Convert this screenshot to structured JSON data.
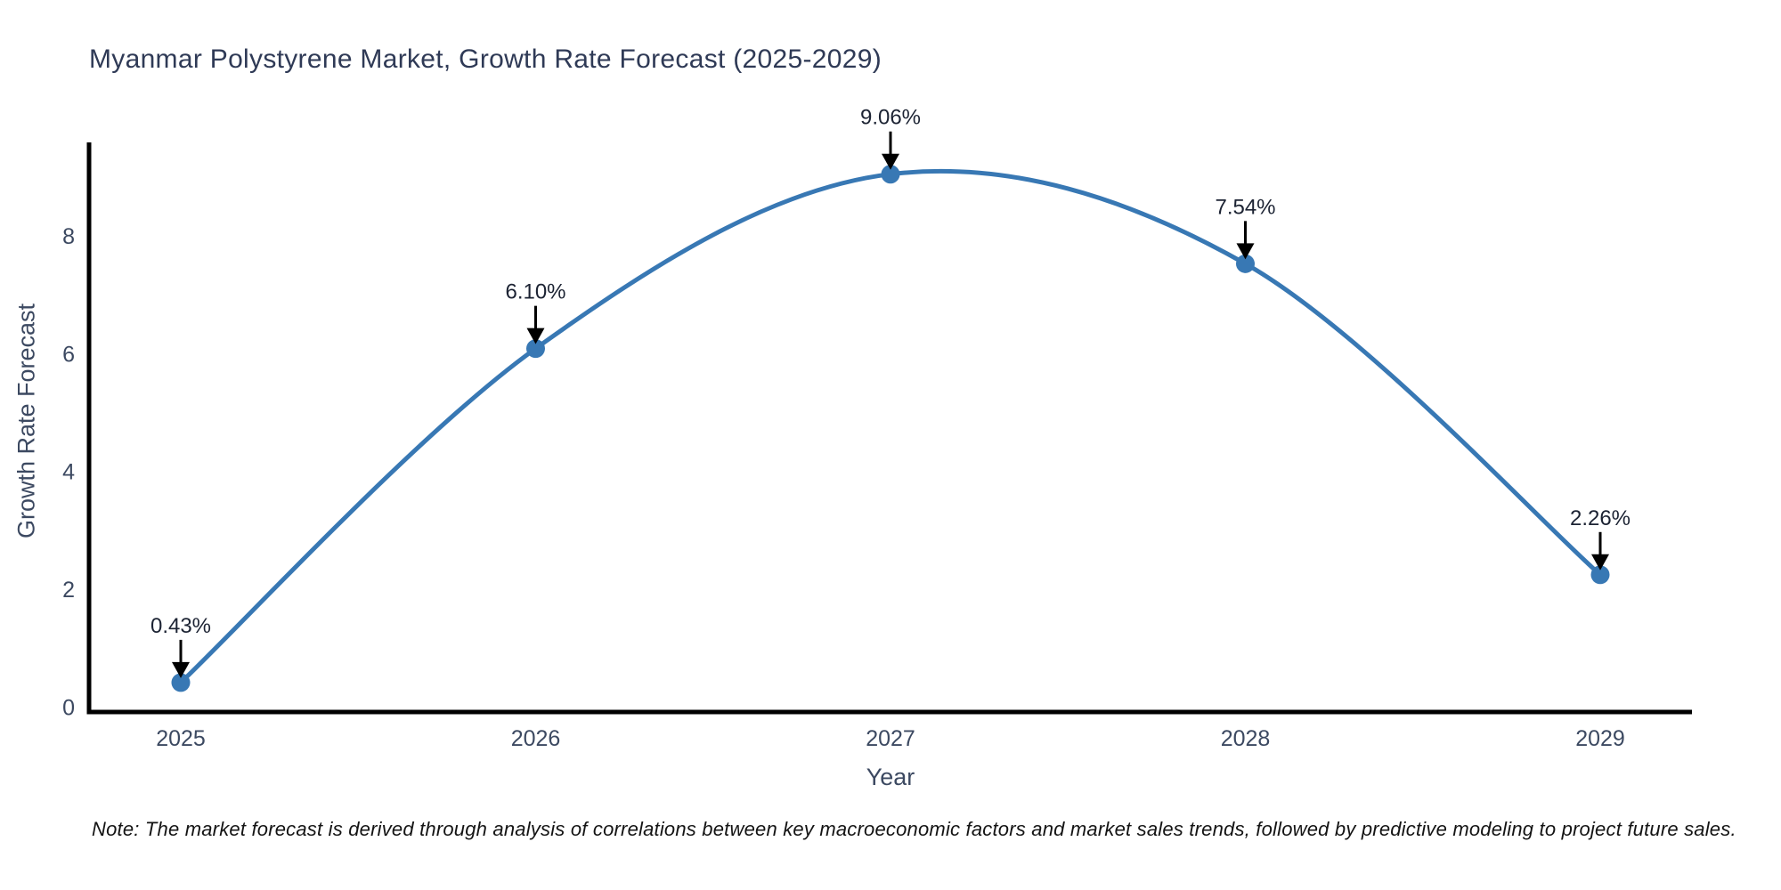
{
  "title": "Myanmar Polystyrene Market, Growth Rate Forecast (2025-2029)",
  "footnote": "Note: The market forecast is derived through analysis of correlations between key macroeconomic factors and market sales trends, followed by predictive modeling to project future sales.",
  "chart_data": {
    "type": "line",
    "title": "Myanmar Polystyrene Market, Growth Rate Forecast (2025-2029)",
    "xlabel": "Year",
    "ylabel": "Growth Rate Forecast",
    "categories": [
      "2025",
      "2026",
      "2027",
      "2028",
      "2029"
    ],
    "series": [
      {
        "name": "Growth Rate Forecast",
        "values": [
          0.43,
          6.1,
          9.06,
          7.54,
          2.26
        ],
        "point_labels": [
          "0.43%",
          "6.10%",
          "9.06%",
          "7.54%",
          "2.26%"
        ]
      }
    ],
    "yticks": [
      0,
      2,
      4,
      6,
      8
    ],
    "ylim": [
      -0.07,
      9.6
    ],
    "grid": false,
    "legend": "none",
    "smooth": true,
    "annotations_arrow": "down",
    "colors": {
      "line": "#3878b4",
      "marker": "#3878b4",
      "annotation_arrow": "#000000",
      "annotation_text": "#1c2333",
      "axis": "#000000",
      "tick_label": "#3c4961",
      "axis_title": "#3c4961",
      "title": "#2f3a56",
      "note": "#141414"
    }
  }
}
